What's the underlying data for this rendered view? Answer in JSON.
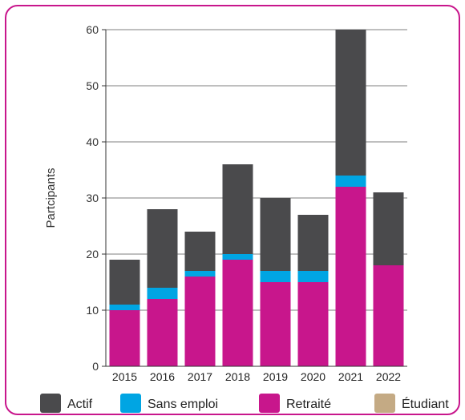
{
  "colors": {
    "frame": "#c8168c",
    "axis": "#333333",
    "grid": "#7f7f7f"
  },
  "chart_data": {
    "type": "bar",
    "stacked": true,
    "categories": [
      "2015",
      "2016",
      "2017",
      "2018",
      "2019",
      "2020",
      "2021",
      "2022"
    ],
    "series": [
      {
        "name": "Actif",
        "color": "#4a4a4c",
        "values": [
          8,
          14,
          7,
          16,
          13,
          10,
          26,
          13
        ]
      },
      {
        "name": "Sans emploi",
        "color": "#00a5e3",
        "values": [
          1,
          2,
          1,
          1,
          2,
          2,
          2,
          0
        ]
      },
      {
        "name": "Retraité",
        "color": "#c8168c",
        "values": [
          10,
          12,
          16,
          19,
          15,
          15,
          32,
          18
        ]
      },
      {
        "name": "Étudiant",
        "color": "#c4aa84",
        "values": [
          0,
          0,
          0,
          0,
          0,
          0,
          0,
          0
        ]
      }
    ],
    "stack_order": [
      "Retraité",
      "Sans emploi",
      "Actif",
      "Étudiant"
    ],
    "ylabel": "Partcipants",
    "ylim": [
      0,
      60
    ],
    "yticks": [
      0,
      10,
      20,
      30,
      40,
      50,
      60
    ],
    "grid": true,
    "legend": "bottom"
  }
}
